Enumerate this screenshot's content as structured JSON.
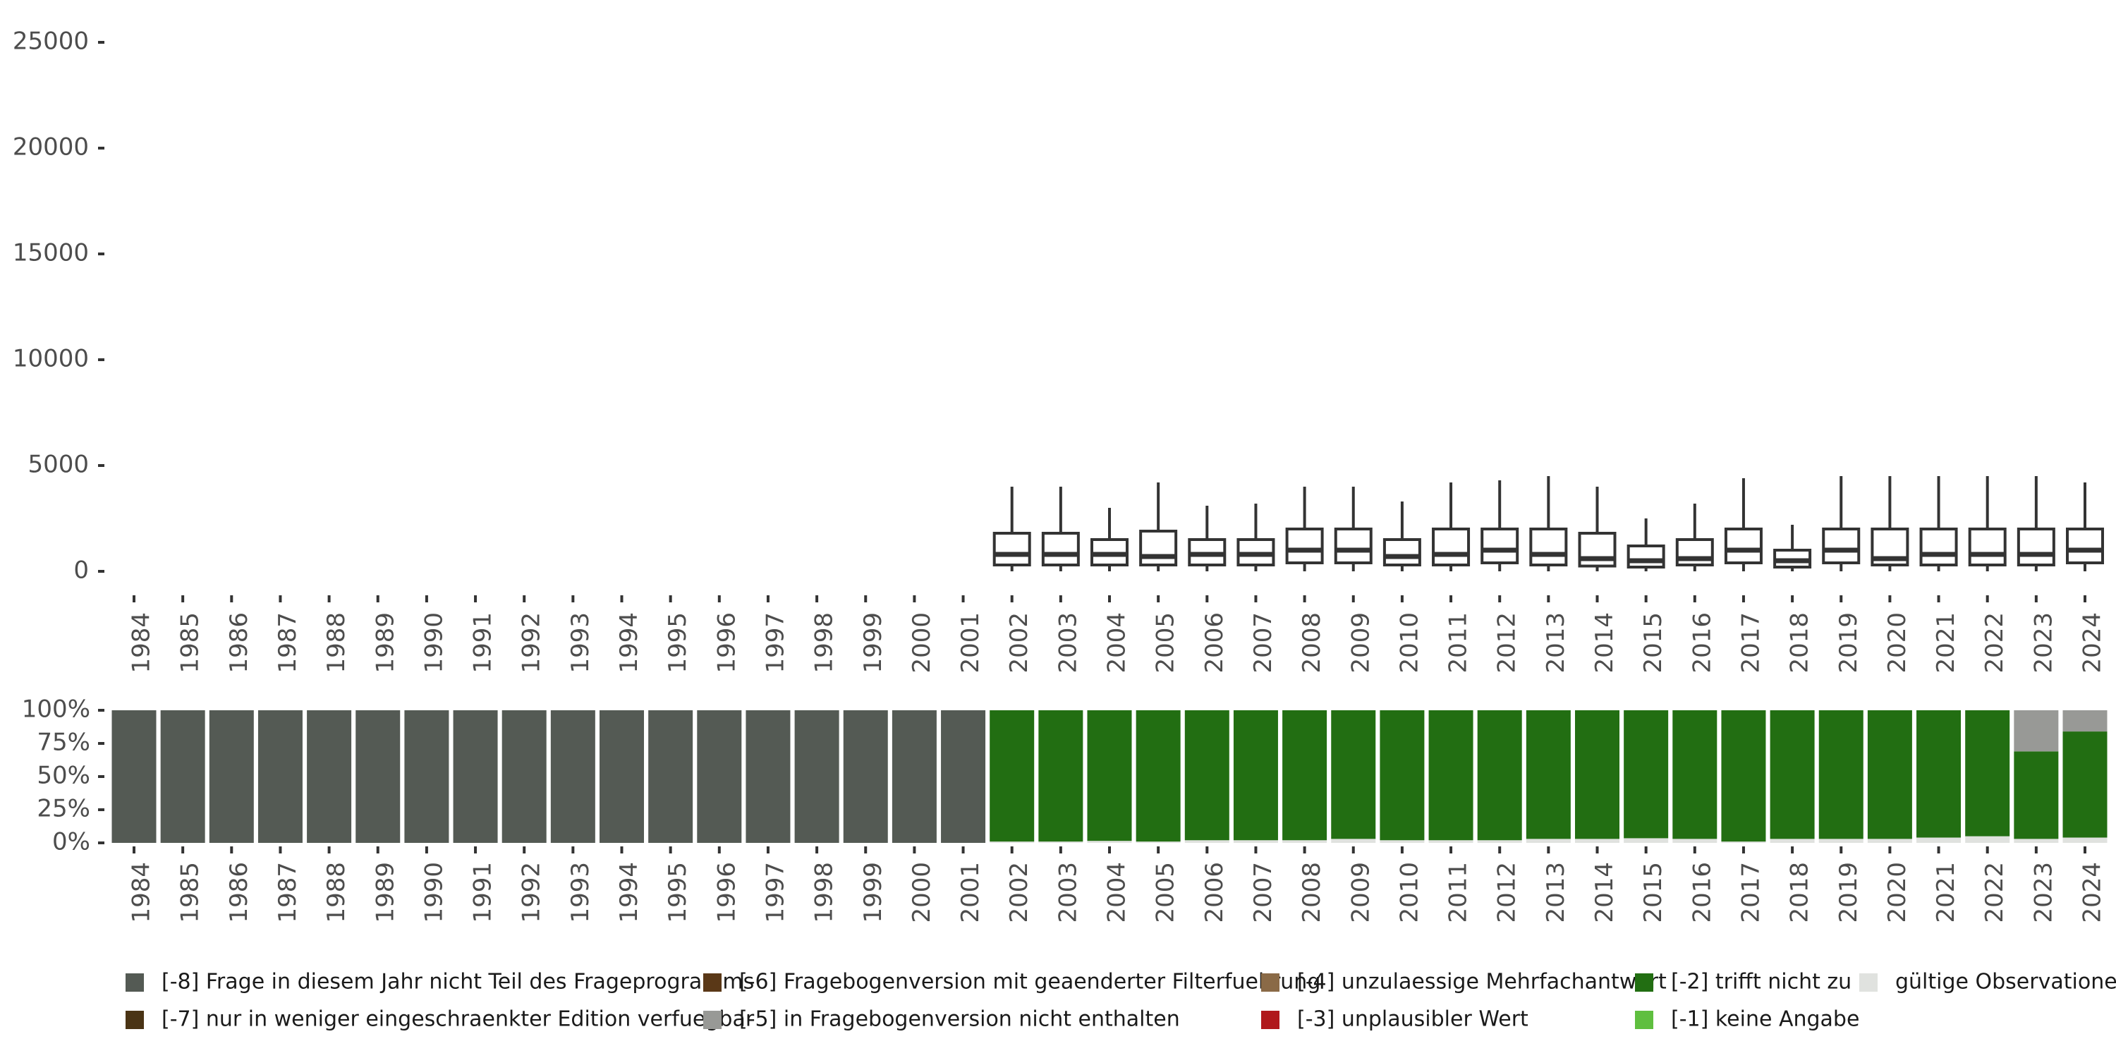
{
  "chart_data": [
    {
      "type": "boxplot",
      "title": "",
      "xlabel": "",
      "ylabel": "",
      "ylim": [
        0,
        25000
      ],
      "y_ticks": [
        0,
        5000,
        10000,
        15000,
        20000,
        25000
      ],
      "categories": [
        "1984",
        "1985",
        "1986",
        "1987",
        "1988",
        "1989",
        "1990",
        "1991",
        "1992",
        "1993",
        "1994",
        "1995",
        "1996",
        "1997",
        "1998",
        "1999",
        "2000",
        "2001",
        "2002",
        "2003",
        "2004",
        "2005",
        "2006",
        "2007",
        "2008",
        "2009",
        "2010",
        "2011",
        "2012",
        "2013",
        "2014",
        "2015",
        "2016",
        "2017",
        "2018",
        "2019",
        "2020",
        "2021",
        "2022",
        "2023",
        "2024"
      ],
      "boxes": [
        {
          "year": "2002",
          "min": 0,
          "q1": 300,
          "median": 800,
          "q3": 1800,
          "max": 4000
        },
        {
          "year": "2003",
          "min": 0,
          "q1": 300,
          "median": 800,
          "q3": 1800,
          "max": 4000
        },
        {
          "year": "2004",
          "min": 0,
          "q1": 300,
          "median": 800,
          "q3": 1500,
          "max": 3000
        },
        {
          "year": "2005",
          "min": 0,
          "q1": 300,
          "median": 700,
          "q3": 1900,
          "max": 4200
        },
        {
          "year": "2006",
          "min": 0,
          "q1": 300,
          "median": 800,
          "q3": 1500,
          "max": 3100
        },
        {
          "year": "2007",
          "min": 0,
          "q1": 300,
          "median": 800,
          "q3": 1500,
          "max": 3200
        },
        {
          "year": "2008",
          "min": 0,
          "q1": 400,
          "median": 1000,
          "q3": 2000,
          "max": 4000
        },
        {
          "year": "2009",
          "min": 0,
          "q1": 400,
          "median": 1000,
          "q3": 2000,
          "max": 4000
        },
        {
          "year": "2010",
          "min": 0,
          "q1": 300,
          "median": 700,
          "q3": 1500,
          "max": 3300
        },
        {
          "year": "2011",
          "min": 0,
          "q1": 300,
          "median": 800,
          "q3": 2000,
          "max": 4200
        },
        {
          "year": "2012",
          "min": 0,
          "q1": 400,
          "median": 1000,
          "q3": 2000,
          "max": 4300
        },
        {
          "year": "2013",
          "min": 0,
          "q1": 300,
          "median": 800,
          "q3": 2000,
          "max": 4500
        },
        {
          "year": "2014",
          "min": 0,
          "q1": 250,
          "median": 600,
          "q3": 1800,
          "max": 4000
        },
        {
          "year": "2015",
          "min": 0,
          "q1": 200,
          "median": 500,
          "q3": 1200,
          "max": 2500
        },
        {
          "year": "2016",
          "min": 0,
          "q1": 300,
          "median": 600,
          "q3": 1500,
          "max": 3200
        },
        {
          "year": "2017",
          "min": 0,
          "q1": 400,
          "median": 1000,
          "q3": 2000,
          "max": 4400
        },
        {
          "year": "2018",
          "min": 0,
          "q1": 200,
          "median": 500,
          "q3": 1000,
          "max": 2200
        },
        {
          "year": "2019",
          "min": 0,
          "q1": 400,
          "median": 1000,
          "q3": 2000,
          "max": 4500
        },
        {
          "year": "2020",
          "min": 0,
          "q1": 300,
          "median": 600,
          "q3": 2000,
          "max": 4500
        },
        {
          "year": "2021",
          "min": 0,
          "q1": 300,
          "median": 800,
          "q3": 2000,
          "max": 4500
        },
        {
          "year": "2022",
          "min": 0,
          "q1": 300,
          "median": 800,
          "q3": 2000,
          "max": 4500
        },
        {
          "year": "2023",
          "min": 0,
          "q1": 300,
          "median": 800,
          "q3": 2000,
          "max": 4500
        },
        {
          "year": "2024",
          "min": 0,
          "q1": 400,
          "median": 1000,
          "q3": 2000,
          "max": 4200
        }
      ]
    },
    {
      "type": "stacked-bar",
      "title": "",
      "ylim": [
        0,
        100
      ],
      "y_tick_labels": [
        "0%",
        "25%",
        "50%",
        "75%",
        "100%"
      ],
      "y_tick_values": [
        0,
        25,
        50,
        75,
        100
      ],
      "categories": [
        "1984",
        "1985",
        "1986",
        "1987",
        "1988",
        "1989",
        "1990",
        "1991",
        "1992",
        "1993",
        "1994",
        "1995",
        "1996",
        "1997",
        "1998",
        "1999",
        "2000",
        "2001",
        "2002",
        "2003",
        "2004",
        "2005",
        "2006",
        "2007",
        "2008",
        "2009",
        "2010",
        "2011",
        "2012",
        "2013",
        "2014",
        "2015",
        "2016",
        "2017",
        "2018",
        "2019",
        "2020",
        "2021",
        "2022",
        "2023",
        "2024"
      ],
      "series": [
        {
          "key": "gueltig",
          "name": "gültige Observationen",
          "color": "#e0e2df",
          "values": [
            0,
            0,
            0,
            0,
            0,
            0,
            0,
            0,
            0,
            0,
            0,
            0,
            0,
            0,
            0,
            0,
            0,
            0,
            1,
            1,
            1.5,
            1,
            2,
            2,
            2,
            3,
            2,
            2,
            2,
            3,
            3,
            3.5,
            3,
            1,
            3,
            3,
            3,
            4,
            5,
            3,
            4
          ]
        },
        {
          "key": "m1",
          "name": "[-1] keine Angabe",
          "color": "#5fbf3f",
          "values": [
            0,
            0,
            0,
            0,
            0,
            0,
            0,
            0,
            0,
            0,
            0,
            0,
            0,
            0,
            0,
            0,
            0,
            0,
            0,
            0,
            0,
            0,
            0,
            0,
            0,
            0,
            0,
            0,
            0,
            0,
            0,
            0,
            0,
            0,
            0,
            0,
            0,
            0,
            0,
            0,
            0
          ]
        },
        {
          "key": "m2",
          "name": "[-2] trifft nicht zu",
          "color": "#226e12",
          "values": [
            0,
            0,
            0,
            0,
            0,
            0,
            0,
            0,
            0,
            0,
            0,
            0,
            0,
            0,
            0,
            0,
            0,
            0,
            99,
            99,
            98.5,
            99,
            98,
            98,
            98,
            97,
            98,
            98,
            98,
            97,
            97,
            96.5,
            97,
            99,
            97,
            97,
            97,
            96,
            95,
            66,
            80
          ]
        },
        {
          "key": "m3",
          "name": "[-3] unplausibler Wert",
          "color": "#b0181b",
          "values": [
            0,
            0,
            0,
            0,
            0,
            0,
            0,
            0,
            0,
            0,
            0,
            0,
            0,
            0,
            0,
            0,
            0,
            0,
            0,
            0,
            0,
            0,
            0,
            0,
            0,
            0,
            0,
            0,
            0,
            0,
            0,
            0,
            0,
            0,
            0,
            0,
            0,
            0,
            0,
            0,
            0
          ]
        },
        {
          "key": "m4",
          "name": "[-4] unzulaessige Mehrfachantwort",
          "color": "#8a6a47",
          "values": [
            0,
            0,
            0,
            0,
            0,
            0,
            0,
            0,
            0,
            0,
            0,
            0,
            0,
            0,
            0,
            0,
            0,
            0,
            0,
            0,
            0,
            0,
            0,
            0,
            0,
            0,
            0,
            0,
            0,
            0,
            0,
            0,
            0,
            0,
            0,
            0,
            0,
            0,
            0,
            0,
            0
          ]
        },
        {
          "key": "m5",
          "name": "[-5] in Fragebogenversion nicht enthalten",
          "color": "#989996",
          "values": [
            0,
            0,
            0,
            0,
            0,
            0,
            0,
            0,
            0,
            0,
            0,
            0,
            0,
            0,
            0,
            0,
            0,
            0,
            0,
            0,
            0,
            0,
            0,
            0,
            0,
            0,
            0,
            0,
            0,
            0,
            0,
            0,
            0,
            0,
            0,
            0,
            0,
            0,
            0,
            31,
            16
          ]
        },
        {
          "key": "m6",
          "name": "[-6] Fragebogenversion mit geaenderter Filterfuehrung",
          "color": "#5a3817",
          "values": [
            0,
            0,
            0,
            0,
            0,
            0,
            0,
            0,
            0,
            0,
            0,
            0,
            0,
            0,
            0,
            0,
            0,
            0,
            0,
            0,
            0,
            0,
            0,
            0,
            0,
            0,
            0,
            0,
            0,
            0,
            0,
            0,
            0,
            0,
            0,
            0,
            0,
            0,
            0,
            0,
            0
          ]
        },
        {
          "key": "m7",
          "name": "[-7] nur in weniger eingeschraenkter Edition verfuegbar",
          "color": "#4a3415",
          "values": [
            0,
            0,
            0,
            0,
            0,
            0,
            0,
            0,
            0,
            0,
            0,
            0,
            0,
            0,
            0,
            0,
            0,
            0,
            0,
            0,
            0,
            0,
            0,
            0,
            0,
            0,
            0,
            0,
            0,
            0,
            0,
            0,
            0,
            0,
            0,
            0,
            0,
            0,
            0,
            0,
            0
          ]
        },
        {
          "key": "m8",
          "name": "[-8] Frage in diesem Jahr nicht Teil des Frageprogramms",
          "color": "#545a54",
          "values": [
            100,
            100,
            100,
            100,
            100,
            100,
            100,
            100,
            100,
            100,
            100,
            100,
            100,
            100,
            100,
            100,
            100,
            100,
            0,
            0,
            0,
            0,
            0,
            0,
            0,
            0,
            0,
            0,
            0,
            0,
            0,
            0,
            0,
            0,
            0,
            0,
            0,
            0,
            0,
            0,
            0
          ]
        }
      ],
      "legend": {
        "placement": "bottom",
        "rows": [
          [
            "m8",
            "m6",
            "m4",
            "m2",
            "gueltig"
          ],
          [
            "m7",
            "m5",
            "m3",
            "m1"
          ]
        ]
      }
    }
  ]
}
